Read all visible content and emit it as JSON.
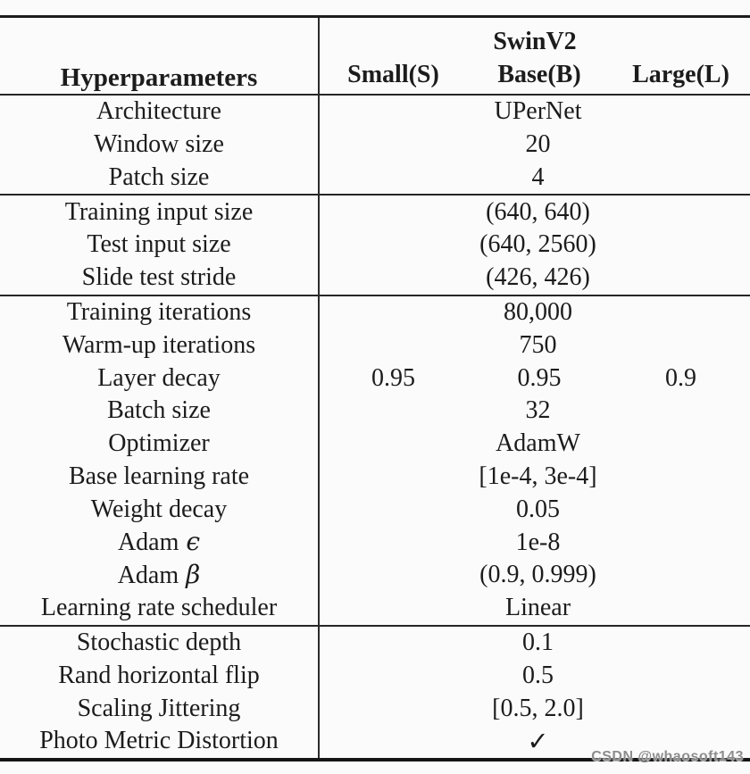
{
  "colors": {
    "background": "#fbfbfb",
    "ink": "#1c1c1c",
    "rule": "#262626",
    "watermark": "#8d8d8d"
  },
  "header": {
    "hyperparameters_label": "Hyperparameters",
    "group_title": "SwinV2",
    "columns": [
      "Small(S)",
      "Base(B)",
      "Large(L)"
    ]
  },
  "rows": [
    {
      "label": "Architecture",
      "value": "UPerNet"
    },
    {
      "label": "Window size",
      "value": "20"
    },
    {
      "label": "Patch size",
      "value": "4"
    },
    {
      "label": "Training input size",
      "value": "(640, 640)"
    },
    {
      "label": "Test input size",
      "value": "(640, 2560)"
    },
    {
      "label": "Slide test stride",
      "value": "(426, 426)"
    },
    {
      "label": "Training iterations",
      "value": "80,000"
    },
    {
      "label": "Warm-up iterations",
      "value": "750"
    },
    {
      "label": "Layer decay",
      "values": [
        "0.95",
        "0.95",
        "0.9"
      ]
    },
    {
      "label": "Batch size",
      "value": "32"
    },
    {
      "label": "Optimizer",
      "value": "AdamW"
    },
    {
      "label": "Base learning rate",
      "value": "[1e-4, 3e-4]"
    },
    {
      "label": "Weight decay",
      "value": "0.05"
    },
    {
      "label": "Adam",
      "symbol": "ϵ",
      "value": "1e-8"
    },
    {
      "label": "Adam",
      "symbol": "β",
      "value": "(0.9, 0.999)"
    },
    {
      "label": "Learning rate scheduler",
      "value": "Linear"
    },
    {
      "label": "Stochastic depth",
      "value": "0.1"
    },
    {
      "label": "Rand horizontal flip",
      "value": "0.5"
    },
    {
      "label": "Scaling Jittering",
      "value": "[0.5, 2.0]"
    },
    {
      "label": "Photo Metric Distortion",
      "value": "✓"
    }
  ],
  "watermark": "CSDN @whaosoft143"
}
